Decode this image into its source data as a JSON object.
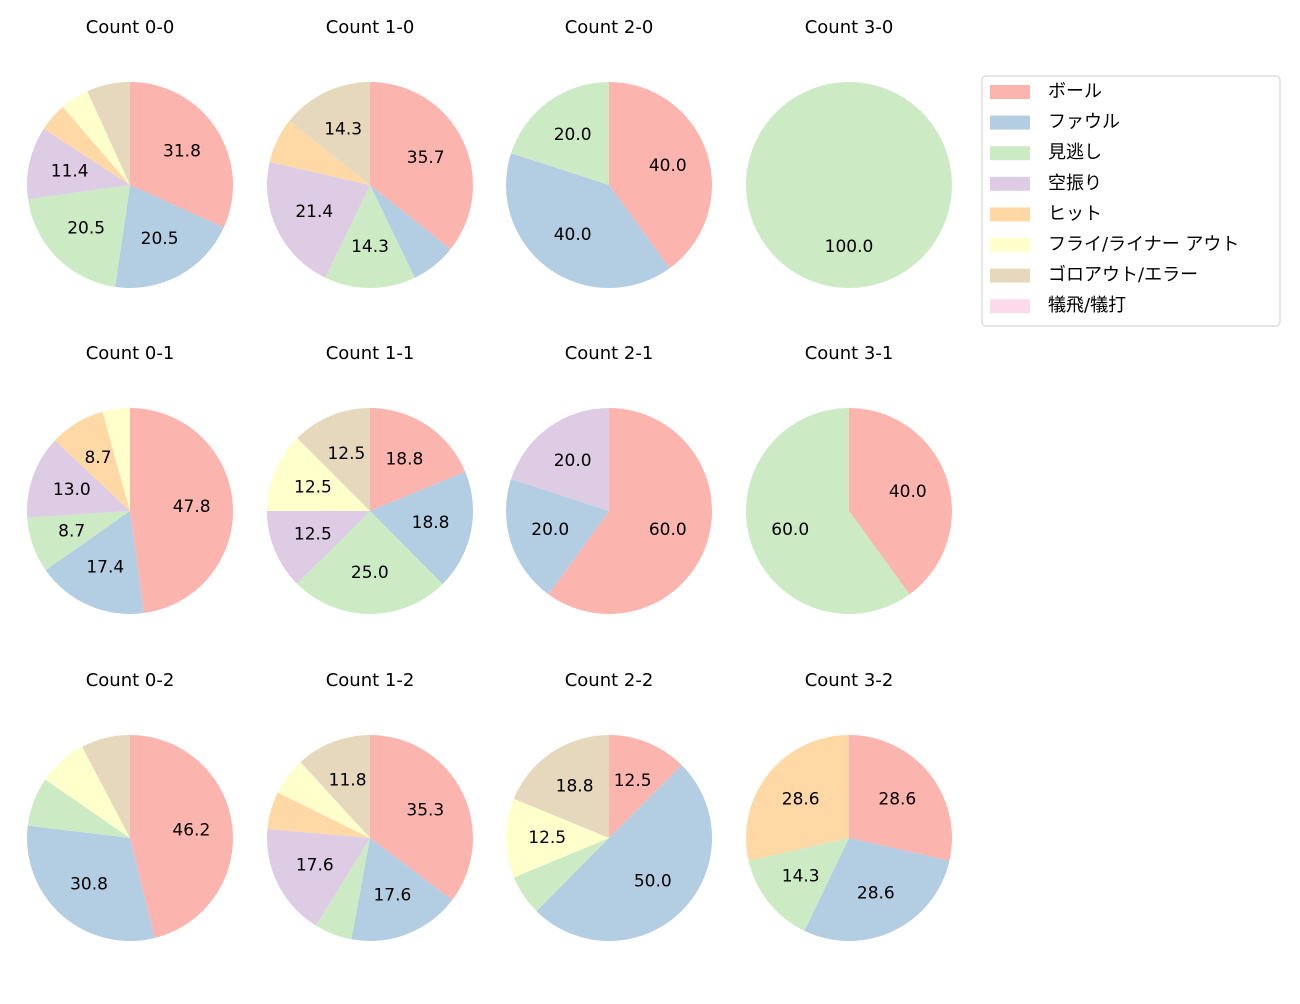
{
  "chart_data": [
    {
      "type": "pie",
      "title": "Count 0-0",
      "values": [
        31.8,
        20.5,
        20.5,
        11.4,
        4.5,
        4.5,
        6.8,
        0
      ],
      "value_labels": [
        "31.8",
        "20.5",
        "20.5",
        "11.4",
        null,
        null,
        null,
        null
      ]
    },
    {
      "type": "pie",
      "title": "Count 1-0",
      "values": [
        35.7,
        7.1,
        14.3,
        21.4,
        7.1,
        0,
        14.3,
        0
      ],
      "value_labels": [
        "35.7",
        null,
        "14.3",
        "21.4",
        null,
        null,
        "14.3",
        null
      ]
    },
    {
      "type": "pie",
      "title": "Count 2-0",
      "values": [
        40,
        40,
        20,
        0,
        0,
        0,
        0,
        0
      ],
      "value_labels": [
        "40.0",
        "40.0",
        "20.0",
        null,
        null,
        null,
        null,
        null
      ]
    },
    {
      "type": "pie",
      "title": "Count 3-0",
      "values": [
        0,
        0,
        100,
        0,
        0,
        0,
        0,
        0
      ],
      "value_labels": [
        null,
        null,
        "100.0",
        null,
        null,
        null,
        null,
        null
      ]
    },
    {
      "type": "pie",
      "title": "Count 0-1",
      "values": [
        47.8,
        17.4,
        8.7,
        13,
        8.7,
        4.3,
        0,
        0
      ],
      "value_labels": [
        "47.8",
        "17.4",
        "8.7",
        "13.0",
        "8.7",
        null,
        null,
        null
      ]
    },
    {
      "type": "pie",
      "title": "Count 1-1",
      "values": [
        18.8,
        18.8,
        25,
        12.5,
        0,
        12.5,
        12.5,
        0
      ],
      "value_labels": [
        "18.8",
        "18.8",
        "25.0",
        "12.5",
        null,
        "12.5",
        "12.5",
        null
      ]
    },
    {
      "type": "pie",
      "title": "Count 2-1",
      "values": [
        60,
        20,
        0,
        20,
        0,
        0,
        0,
        0
      ],
      "value_labels": [
        "60.0",
        "20.0",
        null,
        "20.0",
        null,
        null,
        null,
        null
      ]
    },
    {
      "type": "pie",
      "title": "Count 3-1",
      "values": [
        40,
        0,
        60,
        0,
        0,
        0,
        0,
        0
      ],
      "value_labels": [
        "40.0",
        null,
        "60.0",
        null,
        null,
        null,
        null,
        null
      ]
    },
    {
      "type": "pie",
      "title": "Count 0-2",
      "values": [
        46.2,
        30.8,
        7.7,
        0,
        0,
        7.7,
        7.7,
        0
      ],
      "value_labels": [
        "46.2",
        "30.8",
        null,
        null,
        null,
        null,
        null,
        null
      ]
    },
    {
      "type": "pie",
      "title": "Count 1-2",
      "values": [
        35.3,
        17.6,
        5.9,
        17.6,
        5.9,
        5.9,
        11.8,
        0
      ],
      "value_labels": [
        "35.3",
        "17.6",
        null,
        "17.6",
        null,
        null,
        "11.8",
        null
      ]
    },
    {
      "type": "pie",
      "title": "Count 2-2",
      "values": [
        12.5,
        50,
        6.3,
        0,
        0,
        12.5,
        18.8,
        0
      ],
      "value_labels": [
        "12.5",
        "50.0",
        null,
        null,
        null,
        "12.5",
        "18.8",
        null
      ]
    },
    {
      "type": "pie",
      "title": "Count 3-2",
      "values": [
        28.6,
        28.6,
        14.3,
        0,
        28.6,
        0,
        0,
        0
      ],
      "value_labels": [
        "28.6",
        "28.6",
        "14.3",
        null,
        "28.6",
        null,
        null,
        null
      ]
    }
  ],
  "legend": {
    "position": "upper right",
    "categories": [
      "ボール",
      "ファウル",
      "見逃し",
      "空振り",
      "ヒット",
      "フライ/ライナー アウト",
      "ゴロアウト/エラー",
      "犠飛/犠打"
    ],
    "colors": [
      "#fbb4ae",
      "#b3cde3",
      "#ccebc5",
      "#decbe4",
      "#fed9a6",
      "#ffffcc",
      "#e5d8bd",
      "#fddaec"
    ]
  }
}
